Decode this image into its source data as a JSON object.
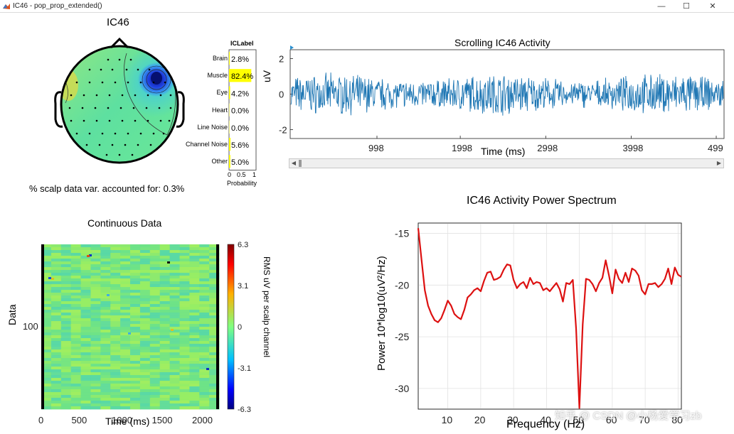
{
  "window": {
    "title": "IC46 - pop_prop_extended()",
    "controls": {
      "minimize": "—",
      "maximize": "☐",
      "close": "✕"
    }
  },
  "topomap": {
    "title": "IC46",
    "variance_text": "% scalp data var. accounted for: 0.3%"
  },
  "iclabel": {
    "title": "ICLabel",
    "xlabel": "Probability",
    "xticks": [
      "0",
      "0.5",
      "1"
    ],
    "classes": [
      {
        "label": "Brain",
        "percent": "2.8%",
        "prob": 0.028
      },
      {
        "label": "Muscle",
        "percent": "82.4%",
        "prob": 0.824
      },
      {
        "label": "Eye",
        "percent": "4.2%",
        "prob": 0.042
      },
      {
        "label": "Heart",
        "percent": "0.0%",
        "prob": 0.0
      },
      {
        "label": "Line Noise",
        "percent": "0.0%",
        "prob": 0.0
      },
      {
        "label": "Channel Noise",
        "percent": "5.6%",
        "prob": 0.056
      },
      {
        "label": "Other",
        "percent": "5.0%",
        "prob": 0.05
      }
    ],
    "bar_color": "#ffff00"
  },
  "chart_data": [
    {
      "type": "line",
      "title": "Scrolling IC46 Activity",
      "xlabel": "Time (ms)",
      "ylabel": "uV",
      "xticks": [
        "998",
        "1998",
        "2998",
        "3998",
        "499"
      ],
      "yticks": [
        "2",
        "0",
        "-2"
      ],
      "ylim": [
        -2.5,
        2.5
      ],
      "line_color": "#1f77b4"
    },
    {
      "type": "line",
      "title": "IC46 Activity Power Spectrum",
      "xlabel": "Frequency (Hz)",
      "ylabel": "Power 10*log10(uV²/Hz)",
      "xlim": [
        1,
        81
      ],
      "ylim": [
        -32,
        -14
      ],
      "xticks": [
        "10",
        "20",
        "30",
        "40",
        "50",
        "60",
        "70",
        "80"
      ],
      "yticks": [
        "-15",
        "-20",
        "-25",
        "-30"
      ],
      "line_color": "#dd1111",
      "x": [
        1,
        2,
        3,
        4,
        5,
        6,
        7,
        8,
        9,
        10,
        11,
        12,
        13,
        14,
        15,
        16,
        17,
        18,
        19,
        20,
        21,
        22,
        23,
        24,
        25,
        26,
        27,
        28,
        29,
        30,
        31,
        32,
        33,
        34,
        35,
        36,
        37,
        38,
        39,
        40,
        41,
        42,
        43,
        44,
        45,
        46,
        47,
        48,
        49,
        50,
        51,
        52,
        53,
        54,
        55,
        56,
        57,
        58,
        59,
        60,
        61,
        62,
        63,
        64,
        65,
        66,
        67,
        68,
        69,
        70,
        71,
        72,
        73,
        74,
        75,
        76,
        77,
        78,
        79,
        80,
        81
      ],
      "y": [
        -14.5,
        -17.5,
        -20.5,
        -22,
        -22.8,
        -23.4,
        -23.6,
        -23.2,
        -22.4,
        -21.5,
        -22,
        -22.8,
        -23.1,
        -23.3,
        -22.4,
        -21.2,
        -20.9,
        -20.5,
        -20.3,
        -20.6,
        -19.6,
        -18.8,
        -18.7,
        -19.5,
        -19.4,
        -19.2,
        -18.5,
        -18,
        -18.1,
        -19.5,
        -20.3,
        -19.9,
        -19.7,
        -20.3,
        -19.3,
        -19.9,
        -19.7,
        -19.8,
        -20.5,
        -20.3,
        -20.6,
        -20.2,
        -19.8,
        -20.4,
        -21.6,
        -19.8,
        -19.9,
        -19.5,
        -24.2,
        -31.9,
        -23.8,
        -19.4,
        -19.5,
        -19.9,
        -20.6,
        -19.8,
        -19.3,
        -17.6,
        -19.1,
        -20.8,
        -18.5,
        -19.4,
        -19.8,
        -18.8,
        -19.7,
        -18.4,
        -18.6,
        -19.1,
        -20.5,
        -20.9,
        -19.9,
        -19.9,
        -19.8,
        -20.2,
        -19.9,
        -19.4,
        -18.4,
        -19.9,
        -18.3,
        -19.0,
        -19.2
      ]
    },
    {
      "type": "heatmap",
      "title": "Continuous Data",
      "xlabel": "Time (ms)",
      "ylabel": "Data",
      "xticks": [
        "0",
        "500",
        "1000",
        "1500",
        "2000"
      ],
      "yticks": [
        "100"
      ],
      "colorbar_label": "RMS uV per scalp channel",
      "colorbar_ticks": [
        "6.3",
        "3.1",
        "0",
        "-3.1",
        "-6.3"
      ],
      "clim": [
        -6.3,
        6.3
      ]
    }
  ],
  "watermark": "知乎 @ CSDN @小杨爱学习zb"
}
